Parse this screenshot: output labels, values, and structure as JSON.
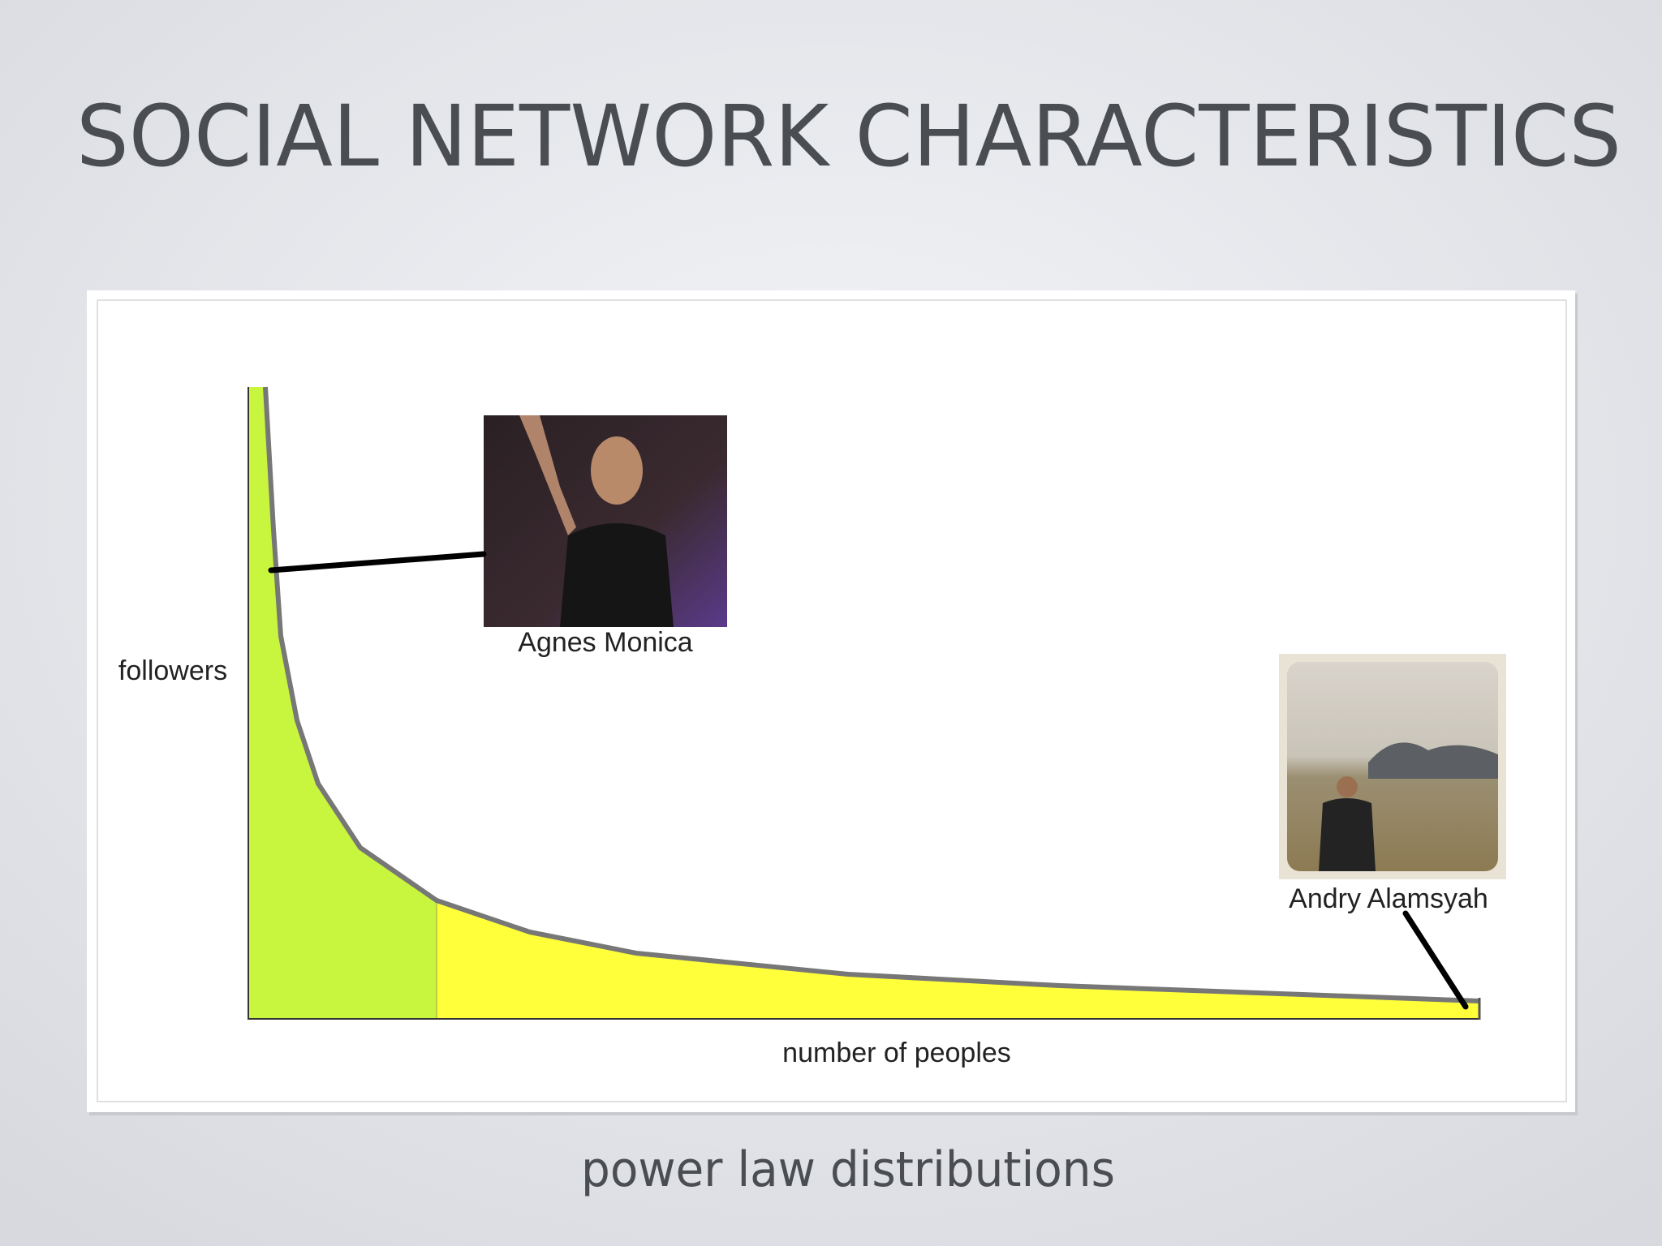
{
  "slide": {
    "title": "SOCIAL NETWORK CHARACTERISTICS",
    "caption": "power law distributions"
  },
  "diagram": {
    "y_axis_label": "followers",
    "x_axis_label": "number of peoples",
    "people": [
      {
        "name": "Agnes Monica"
      },
      {
        "name": "Andry Alamsyah"
      }
    ]
  }
}
